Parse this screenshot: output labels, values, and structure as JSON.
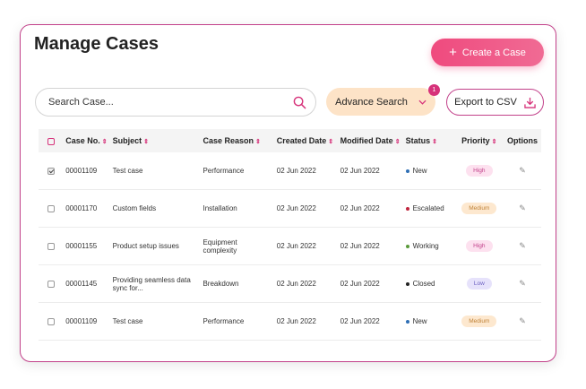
{
  "page": {
    "title": "Manage Cases"
  },
  "toolbar": {
    "create_label": "Create a Case",
    "create_icon": "plus-icon",
    "search_placeholder": "Search Case...",
    "search_icon": "search-icon",
    "advance_label": "Advance Search",
    "advance_badge": "1",
    "export_label": "Export to CSV",
    "export_icon": "download-icon"
  },
  "table": {
    "headers": {
      "case_no": "Case No.",
      "subject": "Subject",
      "case_reason": "Case Reason",
      "created_date": "Created Date",
      "modified_date": "Modified Date",
      "status": "Status",
      "priority": "Priority",
      "options": "Options"
    },
    "rows": [
      {
        "checked": true,
        "case_no": "00001109",
        "subject": "Test case",
        "subject_2": "",
        "reason": "Performance",
        "created": "02 Jun 2022",
        "modified": "02 Jun 2022",
        "status": "New",
        "status_color": "#2f6fb5",
        "priority": "High",
        "priority_bg": "#fde1ef",
        "priority_fg": "#c2418a"
      },
      {
        "checked": false,
        "case_no": "00001170",
        "subject": "Custom fields",
        "subject_2": "",
        "reason": "Installation",
        "created": "02 Jun 2022",
        "modified": "02 Jun 2022",
        "status": "Escalated",
        "status_color": "#c0263f",
        "priority": "Medium",
        "priority_bg": "#fde8cf",
        "priority_fg": "#c1843a"
      },
      {
        "checked": false,
        "case_no": "00001155",
        "subject": "Product setup issues",
        "subject_2": "",
        "reason": "Equipment complexity",
        "created": "02 Jun 2022",
        "modified": "02 Jun 2022",
        "status": "Working",
        "status_color": "#5a9a3a",
        "priority": "High",
        "priority_bg": "#fde1ef",
        "priority_fg": "#c2418a"
      },
      {
        "checked": false,
        "case_no": "00001145",
        "subject": "Providing seamless data",
        "subject_2": "sync for...",
        "reason": "Breakdown",
        "created": "02 Jun 2022",
        "modified": "02 Jun 2022",
        "status": "Closed",
        "status_color": "#222222",
        "priority": "Low",
        "priority_bg": "#e6e2fb",
        "priority_fg": "#6a5fc0"
      },
      {
        "checked": false,
        "case_no": "00001109",
        "subject": "Test case",
        "subject_2": "",
        "reason": "Performance",
        "created": "02 Jun 2022",
        "modified": "02 Jun 2022",
        "status": "New",
        "status_color": "#2f6fb5",
        "priority": "Medium",
        "priority_bg": "#fde8cf",
        "priority_fg": "#c1843a"
      }
    ]
  }
}
